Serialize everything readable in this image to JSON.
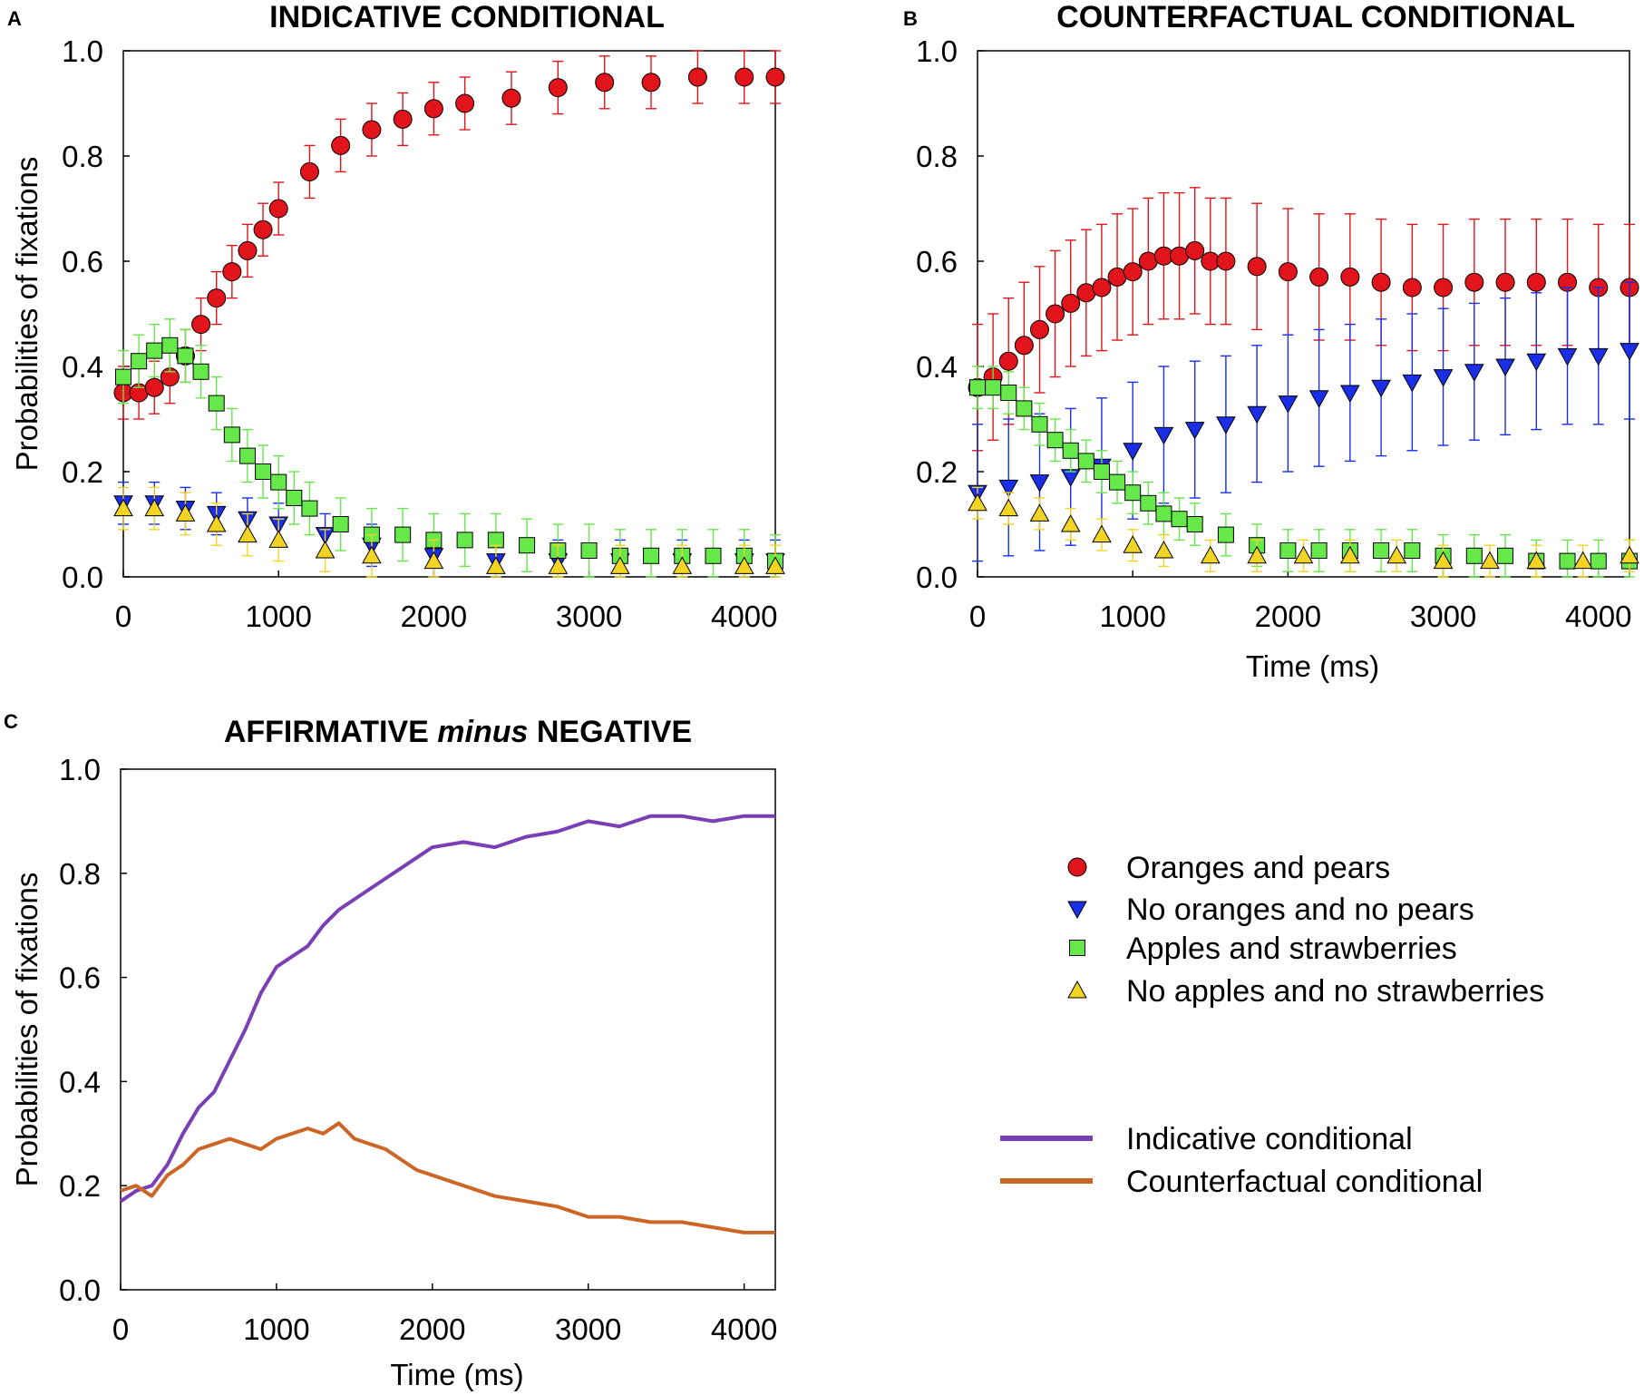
{
  "chart_data": [
    {
      "type": "scatter",
      "panel": "A",
      "title": "INDICATIVE CONDITIONAL",
      "xlabel": "",
      "ylabel": "Probabilities of fixations",
      "xlim": [
        0,
        4200
      ],
      "ylim": [
        0,
        1.0
      ],
      "xticks": [
        "0",
        "1000",
        "2000",
        "3000",
        "4000"
      ],
      "yticks": [
        "0.0",
        "0.2",
        "0.4",
        "0.6",
        "0.8",
        "1.0"
      ],
      "grid": false,
      "series": [
        {
          "name": "Oranges and pears",
          "marker": "circle",
          "color": "#e0141a",
          "x": [
            0,
            100,
            200,
            300,
            400,
            500,
            600,
            700,
            800,
            900,
            1000,
            1200,
            1400,
            1600,
            1800,
            2000,
            2200,
            2500,
            2800,
            3100,
            3400,
            3700,
            4000,
            4200
          ],
          "y": [
            0.35,
            0.35,
            0.36,
            0.38,
            0.42,
            0.48,
            0.53,
            0.58,
            0.62,
            0.66,
            0.7,
            0.77,
            0.82,
            0.85,
            0.87,
            0.89,
            0.9,
            0.91,
            0.93,
            0.94,
            0.94,
            0.95,
            0.95,
            0.95
          ],
          "err": 0.05
        },
        {
          "name": "No oranges and no pears",
          "marker": "triangle-down",
          "color": "#1a2ee8",
          "x": [
            0,
            200,
            400,
            600,
            800,
            1000,
            1300,
            1600,
            2000,
            2400,
            2800,
            3200,
            3600,
            4000,
            4200
          ],
          "y": [
            0.14,
            0.14,
            0.13,
            0.12,
            0.11,
            0.1,
            0.08,
            0.06,
            0.04,
            0.03,
            0.03,
            0.03,
            0.03,
            0.03,
            0.03
          ],
          "err": 0.04
        },
        {
          "name": "Apples and strawberries",
          "marker": "square",
          "color": "#66e84a",
          "x": [
            0,
            100,
            200,
            300,
            400,
            500,
            600,
            700,
            800,
            900,
            1000,
            1100,
            1200,
            1400,
            1600,
            1800,
            2000,
            2200,
            2400,
            2600,
            2800,
            3000,
            3200,
            3400,
            3600,
            3800,
            4000,
            4200
          ],
          "y": [
            0.38,
            0.41,
            0.43,
            0.44,
            0.42,
            0.39,
            0.33,
            0.27,
            0.23,
            0.2,
            0.18,
            0.15,
            0.13,
            0.1,
            0.08,
            0.08,
            0.07,
            0.07,
            0.07,
            0.06,
            0.05,
            0.05,
            0.04,
            0.04,
            0.04,
            0.04,
            0.04,
            0.03
          ],
          "err": 0.05
        },
        {
          "name": "No apples and no strawberries",
          "marker": "triangle-up",
          "color": "#f2d424",
          "x": [
            0,
            200,
            400,
            600,
            800,
            1000,
            1300,
            1600,
            2000,
            2400,
            2800,
            3200,
            3600,
            4000,
            4200
          ],
          "y": [
            0.13,
            0.13,
            0.12,
            0.1,
            0.08,
            0.07,
            0.05,
            0.04,
            0.03,
            0.02,
            0.02,
            0.02,
            0.02,
            0.02,
            0.02
          ],
          "err": 0.04
        }
      ]
    },
    {
      "type": "scatter",
      "panel": "B",
      "title": "COUNTERFACTUAL CONDITIONAL",
      "xlabel": "Time (ms)",
      "ylabel": "",
      "xlim": [
        0,
        4200
      ],
      "ylim": [
        0,
        1.0
      ],
      "xticks": [
        "0",
        "1000",
        "2000",
        "3000",
        "4000"
      ],
      "yticks": [
        "0.0",
        "0.2",
        "0.4",
        "0.6",
        "0.8",
        "1.0"
      ],
      "grid": false,
      "series": [
        {
          "name": "Oranges and pears",
          "marker": "circle",
          "color": "#e0141a",
          "x": [
            0,
            100,
            200,
            300,
            400,
            500,
            600,
            700,
            800,
            900,
            1000,
            1100,
            1200,
            1300,
            1400,
            1500,
            1600,
            1800,
            2000,
            2200,
            2400,
            2600,
            2800,
            3000,
            3200,
            3400,
            3600,
            3800,
            4000,
            4200
          ],
          "y": [
            0.36,
            0.38,
            0.41,
            0.44,
            0.47,
            0.5,
            0.52,
            0.54,
            0.55,
            0.57,
            0.58,
            0.6,
            0.61,
            0.61,
            0.62,
            0.6,
            0.6,
            0.59,
            0.58,
            0.57,
            0.57,
            0.56,
            0.55,
            0.55,
            0.56,
            0.56,
            0.56,
            0.56,
            0.55,
            0.55
          ],
          "err": 0.12
        },
        {
          "name": "No oranges and no pears",
          "marker": "triangle-down",
          "color": "#1a2ee8",
          "x": [
            0,
            200,
            400,
            600,
            800,
            1000,
            1200,
            1400,
            1600,
            1800,
            2000,
            2200,
            2400,
            2600,
            2800,
            3000,
            3200,
            3400,
            3600,
            3800,
            4000,
            4200
          ],
          "y": [
            0.16,
            0.17,
            0.18,
            0.19,
            0.21,
            0.24,
            0.27,
            0.28,
            0.29,
            0.31,
            0.33,
            0.34,
            0.35,
            0.36,
            0.37,
            0.38,
            0.39,
            0.4,
            0.41,
            0.42,
            0.42,
            0.43
          ],
          "err": 0.13
        },
        {
          "name": "Apples and strawberries",
          "marker": "square",
          "color": "#66e84a",
          "x": [
            0,
            100,
            200,
            300,
            400,
            500,
            600,
            700,
            800,
            900,
            1000,
            1100,
            1200,
            1300,
            1400,
            1600,
            1800,
            2000,
            2200,
            2400,
            2600,
            2800,
            3000,
            3200,
            3400,
            3600,
            3800,
            4000,
            4200
          ],
          "y": [
            0.36,
            0.36,
            0.35,
            0.32,
            0.29,
            0.26,
            0.24,
            0.22,
            0.2,
            0.18,
            0.16,
            0.14,
            0.12,
            0.11,
            0.1,
            0.08,
            0.06,
            0.05,
            0.05,
            0.05,
            0.05,
            0.05,
            0.04,
            0.04,
            0.04,
            0.03,
            0.03,
            0.03,
            0.03
          ],
          "err": 0.04
        },
        {
          "name": "No apples and no strawberries",
          "marker": "triangle-up",
          "color": "#f2d424",
          "x": [
            0,
            200,
            400,
            600,
            800,
            1000,
            1200,
            1500,
            1800,
            2100,
            2400,
            2700,
            3000,
            3300,
            3600,
            3900,
            4200
          ],
          "y": [
            0.14,
            0.13,
            0.12,
            0.1,
            0.08,
            0.06,
            0.05,
            0.04,
            0.04,
            0.04,
            0.04,
            0.04,
            0.03,
            0.03,
            0.03,
            0.03,
            0.04
          ],
          "err": 0.03
        }
      ]
    },
    {
      "type": "line",
      "panel": "C",
      "title_parts": [
        "AFFIRMATIVE ",
        "minus",
        " NEGATIVE"
      ],
      "xlabel": "Time (ms)",
      "ylabel": "Probabilities of fixations",
      "xlim": [
        0,
        4200
      ],
      "ylim": [
        0,
        1.0
      ],
      "xticks": [
        "0",
        "1000",
        "2000",
        "3000",
        "4000"
      ],
      "yticks": [
        "0.0",
        "0.2",
        "0.4",
        "0.6",
        "0.8",
        "1.0"
      ],
      "grid": false,
      "series": [
        {
          "name": "Indicative conditional",
          "color": "#7a3fb4",
          "x": [
            0,
            100,
            200,
            300,
            400,
            500,
            600,
            700,
            800,
            900,
            1000,
            1100,
            1200,
            1300,
            1400,
            1500,
            1600,
            1700,
            1800,
            1900,
            2000,
            2200,
            2400,
            2600,
            2800,
            3000,
            3200,
            3400,
            3600,
            3800,
            4000,
            4200
          ],
          "y": [
            0.17,
            0.19,
            0.2,
            0.24,
            0.3,
            0.35,
            0.38,
            0.44,
            0.5,
            0.57,
            0.62,
            0.64,
            0.66,
            0.7,
            0.73,
            0.75,
            0.77,
            0.79,
            0.81,
            0.83,
            0.85,
            0.86,
            0.85,
            0.87,
            0.88,
            0.9,
            0.89,
            0.91,
            0.91,
            0.9,
            0.91,
            0.91
          ]
        },
        {
          "name": "Counterfactual conditional",
          "color": "#cc6626",
          "x": [
            0,
            100,
            200,
            300,
            400,
            500,
            600,
            700,
            800,
            900,
            1000,
            1100,
            1200,
            1300,
            1400,
            1500,
            1600,
            1700,
            1800,
            1900,
            2000,
            2200,
            2400,
            2600,
            2800,
            3000,
            3200,
            3400,
            3600,
            3800,
            4000,
            4200
          ],
          "y": [
            0.19,
            0.2,
            0.18,
            0.22,
            0.24,
            0.27,
            0.28,
            0.29,
            0.28,
            0.27,
            0.29,
            0.3,
            0.31,
            0.3,
            0.32,
            0.29,
            0.28,
            0.27,
            0.25,
            0.23,
            0.22,
            0.2,
            0.18,
            0.17,
            0.16,
            0.14,
            0.14,
            0.13,
            0.13,
            0.12,
            0.11,
            0.11
          ]
        }
      ]
    }
  ],
  "legend": {
    "markers": [
      {
        "label": "Oranges and pears",
        "marker": "circle",
        "color": "#e0141a"
      },
      {
        "label": "No oranges and no pears",
        "marker": "triangle-down",
        "color": "#1a2ee8"
      },
      {
        "label": "Apples and strawberries",
        "marker": "square",
        "color": "#66e84a"
      },
      {
        "label": "No apples and no strawberries",
        "marker": "triangle-up",
        "color": "#f2d424"
      }
    ],
    "lines": [
      {
        "label": "Indicative conditional",
        "color": "#7a3fb4"
      },
      {
        "label": "Counterfactual conditional",
        "color": "#cc6626"
      }
    ]
  },
  "panel_letters": [
    "A",
    "B",
    "C"
  ]
}
